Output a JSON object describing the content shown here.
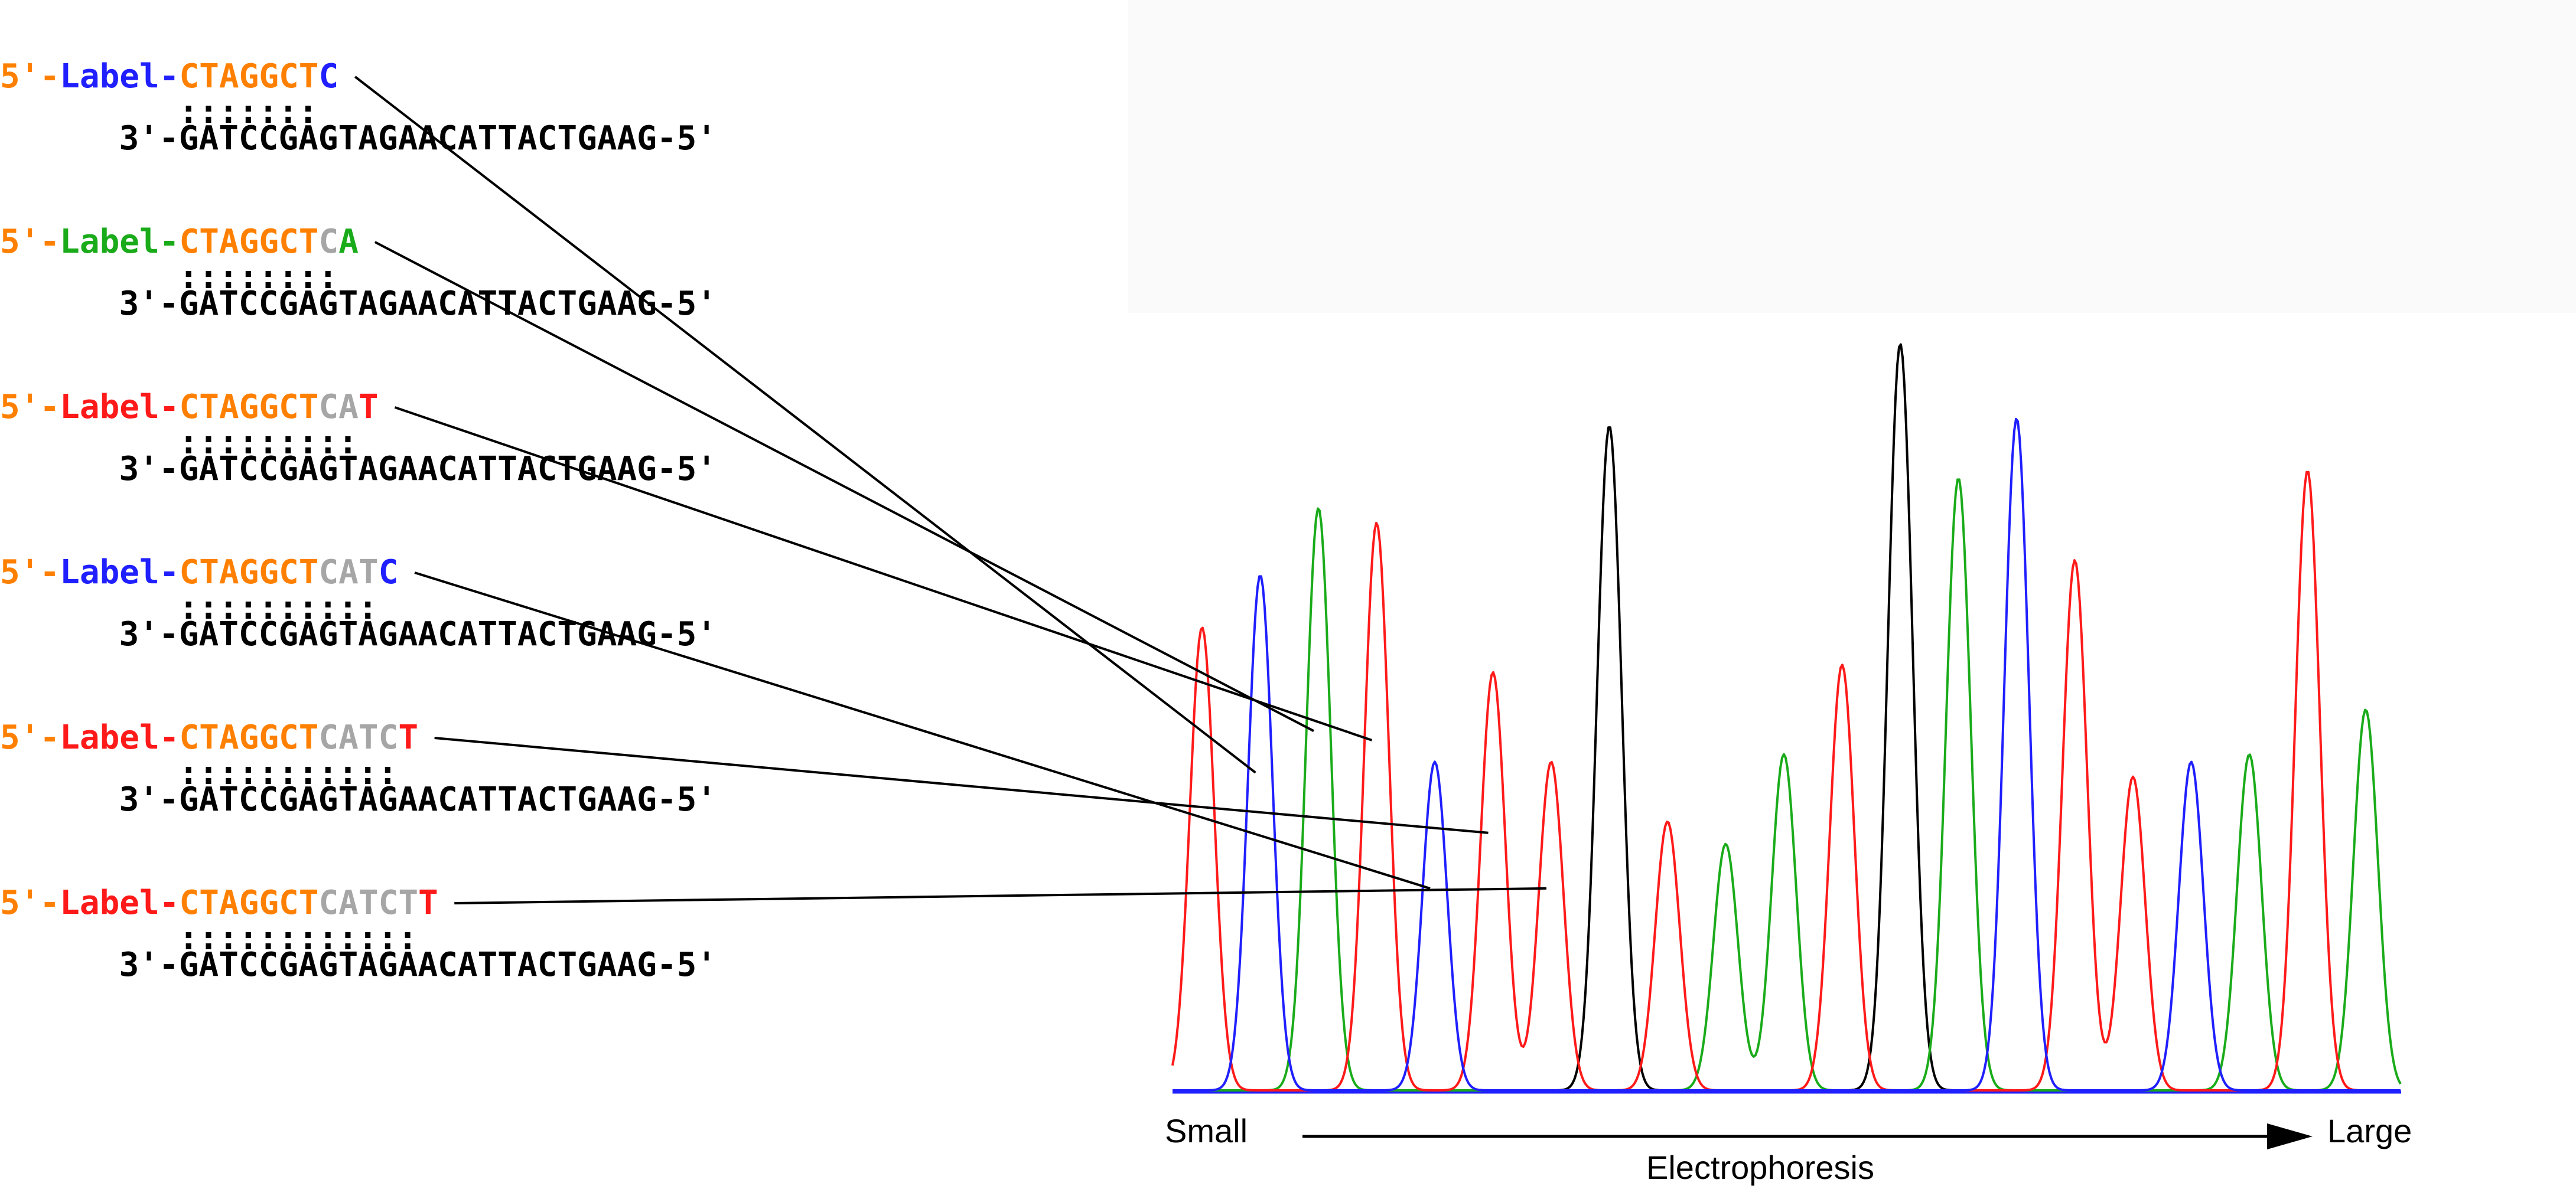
{
  "colors": {
    "label_5prime": "#ff8000",
    "primer": "#ff8000",
    "extended": "#a6a6a6",
    "template": "#000000",
    "A": "#1aab1a",
    "C": "#1f1fff",
    "G": "#000000",
    "T": "#ff1a1a",
    "connector": "#000000",
    "panel_bg": "#fafafa"
  },
  "fragments": [
    {
      "prefix": "5'-",
      "label": "Label",
      "dash": "-",
      "primer": "CTAGGCT",
      "extended": "",
      "terminal": "C",
      "terminal_base": "C",
      "bonds": ":::::::",
      "template": "3'-GATCCGAGTAGAACATTACTGAAG-5'",
      "peak_index": 1
    },
    {
      "prefix": "5'-",
      "label": "Label",
      "dash": "-",
      "primer": "CTAGGCT",
      "extended": "C",
      "terminal": "A",
      "terminal_base": "A",
      "bonds": "::::::::",
      "template": "3'-GATCCGAGTAGAACATTACTGAAG-5'",
      "peak_index": 2
    },
    {
      "prefix": "5'-",
      "label": "Label",
      "dash": "-",
      "primer": "CTAGGCT",
      "extended": "CA",
      "terminal": "T",
      "terminal_base": "T",
      "bonds": ":::::::::",
      "template": "3'-GATCCGAGTAGAACATTACTGAAG-5'",
      "peak_index": 3
    },
    {
      "prefix": "5'-",
      "label": "Label",
      "dash": "-",
      "primer": "CTAGGCT",
      "extended": "CAT",
      "terminal": "C",
      "terminal_base": "C",
      "bonds": "::::::::::",
      "template": "3'-GATCCGAGTAGAACATTACTGAAG-5'",
      "peak_index": 4
    },
    {
      "prefix": "5'-",
      "label": "Label",
      "dash": "-",
      "primer": "CTAGGCT",
      "extended": "CATC",
      "terminal": "T",
      "terminal_base": "T",
      "bonds": ":::::::::::",
      "template": "3'-GATCCGAGTAGAACATTACTGAAG-5'",
      "peak_index": 5
    },
    {
      "prefix": "5'-",
      "label": "Label",
      "dash": "-",
      "primer": "CTAGGCT",
      "extended": "CATCT",
      "terminal": "T",
      "terminal_base": "T",
      "bonds": "::::::::::::",
      "template": "3'-GATCCGAGTAGAACATTACTGAAG-5'",
      "peak_index": 6
    }
  ],
  "chromatogram": {
    "peaks": [
      {
        "base": "T",
        "height": 0.62
      },
      {
        "base": "C",
        "height": 0.69
      },
      {
        "base": "A",
        "height": 0.78
      },
      {
        "base": "T",
        "height": 0.76
      },
      {
        "base": "C",
        "height": 0.44
      },
      {
        "base": "T",
        "height": 0.56
      },
      {
        "base": "T",
        "height": 0.44
      },
      {
        "base": "G",
        "height": 0.89
      },
      {
        "base": "T",
        "height": 0.36
      },
      {
        "base": "A",
        "height": 0.33
      },
      {
        "base": "A",
        "height": 0.45
      },
      {
        "base": "T",
        "height": 0.57
      },
      {
        "base": "G",
        "height": 1.0
      },
      {
        "base": "A",
        "height": 0.82
      },
      {
        "base": "C",
        "height": 0.9
      },
      {
        "base": "T",
        "height": 0.71
      },
      {
        "base": "T",
        "height": 0.42
      },
      {
        "base": "C",
        "height": 0.44
      },
      {
        "base": "A",
        "height": 0.45
      },
      {
        "base": "T",
        "height": 0.83
      },
      {
        "base": "A",
        "height": 0.51
      }
    ],
    "axis": {
      "left_label": "Small",
      "right_label": "Large",
      "caption": "Electrophoresis"
    }
  }
}
